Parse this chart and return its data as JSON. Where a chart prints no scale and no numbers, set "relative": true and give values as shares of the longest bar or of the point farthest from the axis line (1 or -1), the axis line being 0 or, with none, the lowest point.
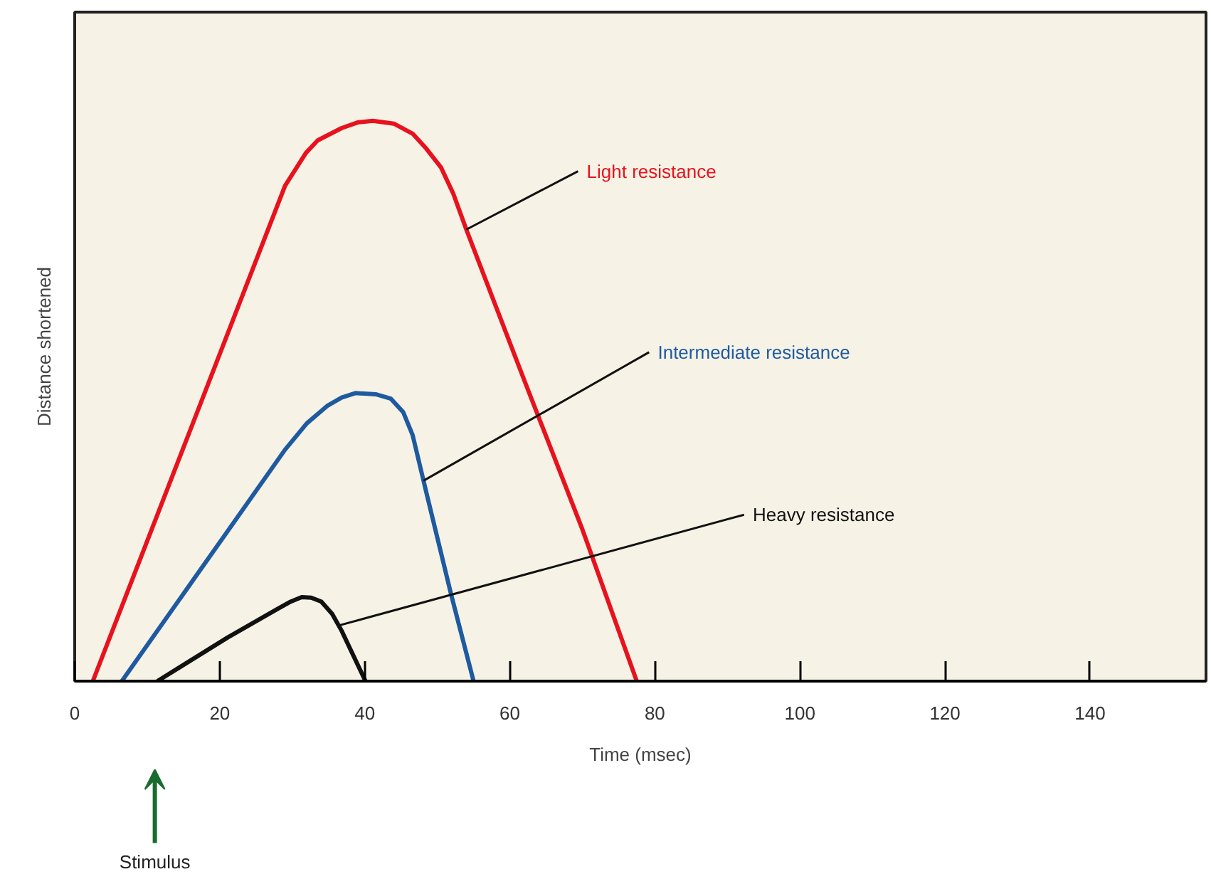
{
  "chart_data": {
    "type": "line",
    "relative": true,
    "xlabel": "Time (msec)",
    "ylabel": "Distance shortened",
    "xlim": [
      0,
      156
    ],
    "xticks": [
      0,
      20,
      40,
      60,
      80,
      100,
      120,
      140
    ],
    "series": [
      {
        "name": "Light resistance",
        "color": "#e8121e",
        "x": [
          2.5,
          29,
          31.9,
          33.5,
          36.8,
          39,
          41.1,
          44,
          46.6,
          48.5,
          50.5,
          52.2,
          54,
          62.2,
          70,
          77.5
        ],
        "values": [
          0,
          0.884,
          0.943,
          0.965,
          0.987,
          0.997,
          1,
          0.995,
          0.977,
          0.95,
          0.917,
          0.87,
          0.806,
          0.53,
          0.271,
          0
        ]
      },
      {
        "name": "Intermediate resistance",
        "color": "#1f5aa0",
        "x": [
          6.5,
          19.2,
          29,
          32,
          34.8,
          36.8,
          38.7,
          41.5,
          43.6,
          45.3,
          46.6,
          48.5,
          51.9,
          55
        ],
        "values": [
          0,
          0.233,
          0.413,
          0.46,
          0.491,
          0.506,
          0.514,
          0.512,
          0.504,
          0.48,
          0.439,
          0.336,
          0.155,
          0
        ]
      },
      {
        "name": "Heavy resistance",
        "color": "#111111",
        "x": [
          11.4,
          21.1,
          28,
          29.8,
          31.3,
          32.6,
          34,
          35.5,
          36.8,
          40.1
        ],
        "values": [
          0,
          0.078,
          0.129,
          0.142,
          0.15,
          0.149,
          0.142,
          0.12,
          0.09,
          0
        ]
      }
    ],
    "annotations": [
      "Stimulus"
    ]
  }
}
